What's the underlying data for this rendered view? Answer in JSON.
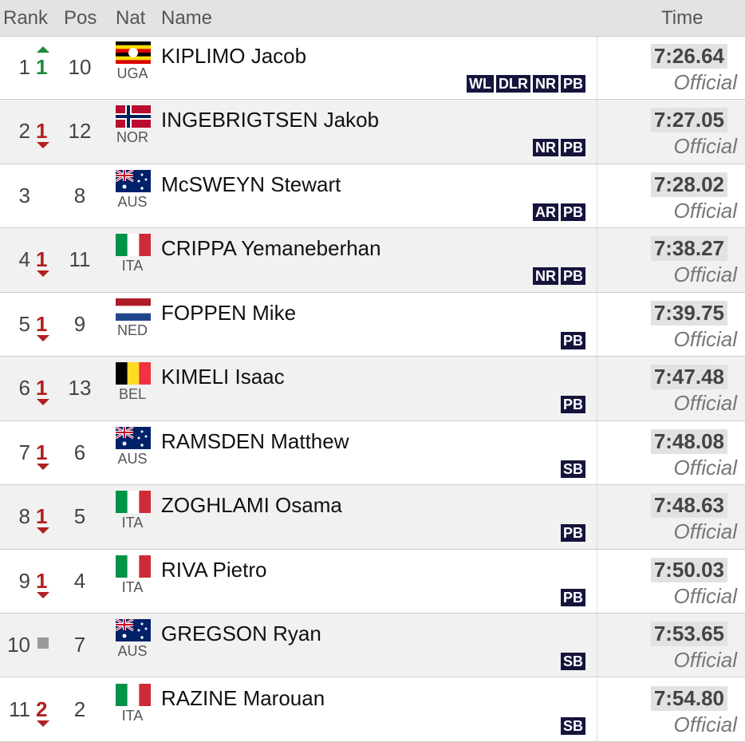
{
  "header": {
    "rank": "Rank",
    "pos": "Pos",
    "nat": "Nat",
    "name": "Name",
    "time": "Time"
  },
  "rows": [
    {
      "rank": 1,
      "change": 1,
      "change_dir": "up",
      "pos": 10,
      "nat": "UGA",
      "name": "KIPLIMO Jacob",
      "badges": [
        "WL",
        "DLR",
        "NR",
        "PB"
      ],
      "time": "7:26.64",
      "status": "Official"
    },
    {
      "rank": 2,
      "change": 1,
      "change_dir": "down",
      "pos": 12,
      "nat": "NOR",
      "name": "INGEBRIGTSEN Jakob",
      "badges": [
        "NR",
        "PB"
      ],
      "time": "7:27.05",
      "status": "Official"
    },
    {
      "rank": 3,
      "change": null,
      "change_dir": null,
      "pos": 8,
      "nat": "AUS",
      "name": "McSWEYN Stewart",
      "badges": [
        "AR",
        "PB"
      ],
      "time": "7:28.02",
      "status": "Official"
    },
    {
      "rank": 4,
      "change": 1,
      "change_dir": "down",
      "pos": 11,
      "nat": "ITA",
      "name": "CRIPPA Yemaneberhan",
      "badges": [
        "NR",
        "PB"
      ],
      "time": "7:38.27",
      "status": "Official"
    },
    {
      "rank": 5,
      "change": 1,
      "change_dir": "down",
      "pos": 9,
      "nat": "NED",
      "name": "FOPPEN Mike",
      "badges": [
        "PB"
      ],
      "time": "7:39.75",
      "status": "Official"
    },
    {
      "rank": 6,
      "change": 1,
      "change_dir": "down",
      "pos": 13,
      "nat": "BEL",
      "name": "KIMELI Isaac",
      "badges": [
        "PB"
      ],
      "time": "7:47.48",
      "status": "Official"
    },
    {
      "rank": 7,
      "change": 1,
      "change_dir": "down",
      "pos": 6,
      "nat": "AUS",
      "name": "RAMSDEN Matthew",
      "badges": [
        "SB"
      ],
      "time": "7:48.08",
      "status": "Official"
    },
    {
      "rank": 8,
      "change": 1,
      "change_dir": "down",
      "pos": 5,
      "nat": "ITA",
      "name": "ZOGHLAMI Osama",
      "badges": [
        "PB"
      ],
      "time": "7:48.63",
      "status": "Official"
    },
    {
      "rank": 9,
      "change": 1,
      "change_dir": "down",
      "pos": 4,
      "nat": "ITA",
      "name": "RIVA Pietro",
      "badges": [
        "PB"
      ],
      "time": "7:50.03",
      "status": "Official"
    },
    {
      "rank": 10,
      "change": null,
      "change_dir": "same",
      "pos": 7,
      "nat": "AUS",
      "name": "GREGSON Ryan",
      "badges": [
        "SB"
      ],
      "time": "7:53.65",
      "status": "Official"
    },
    {
      "rank": 11,
      "change": 2,
      "change_dir": "down",
      "pos": 2,
      "nat": "ITA",
      "name": "RAZINE Marouan",
      "badges": [
        "SB"
      ],
      "time": "7:54.80",
      "status": "Official"
    }
  ]
}
